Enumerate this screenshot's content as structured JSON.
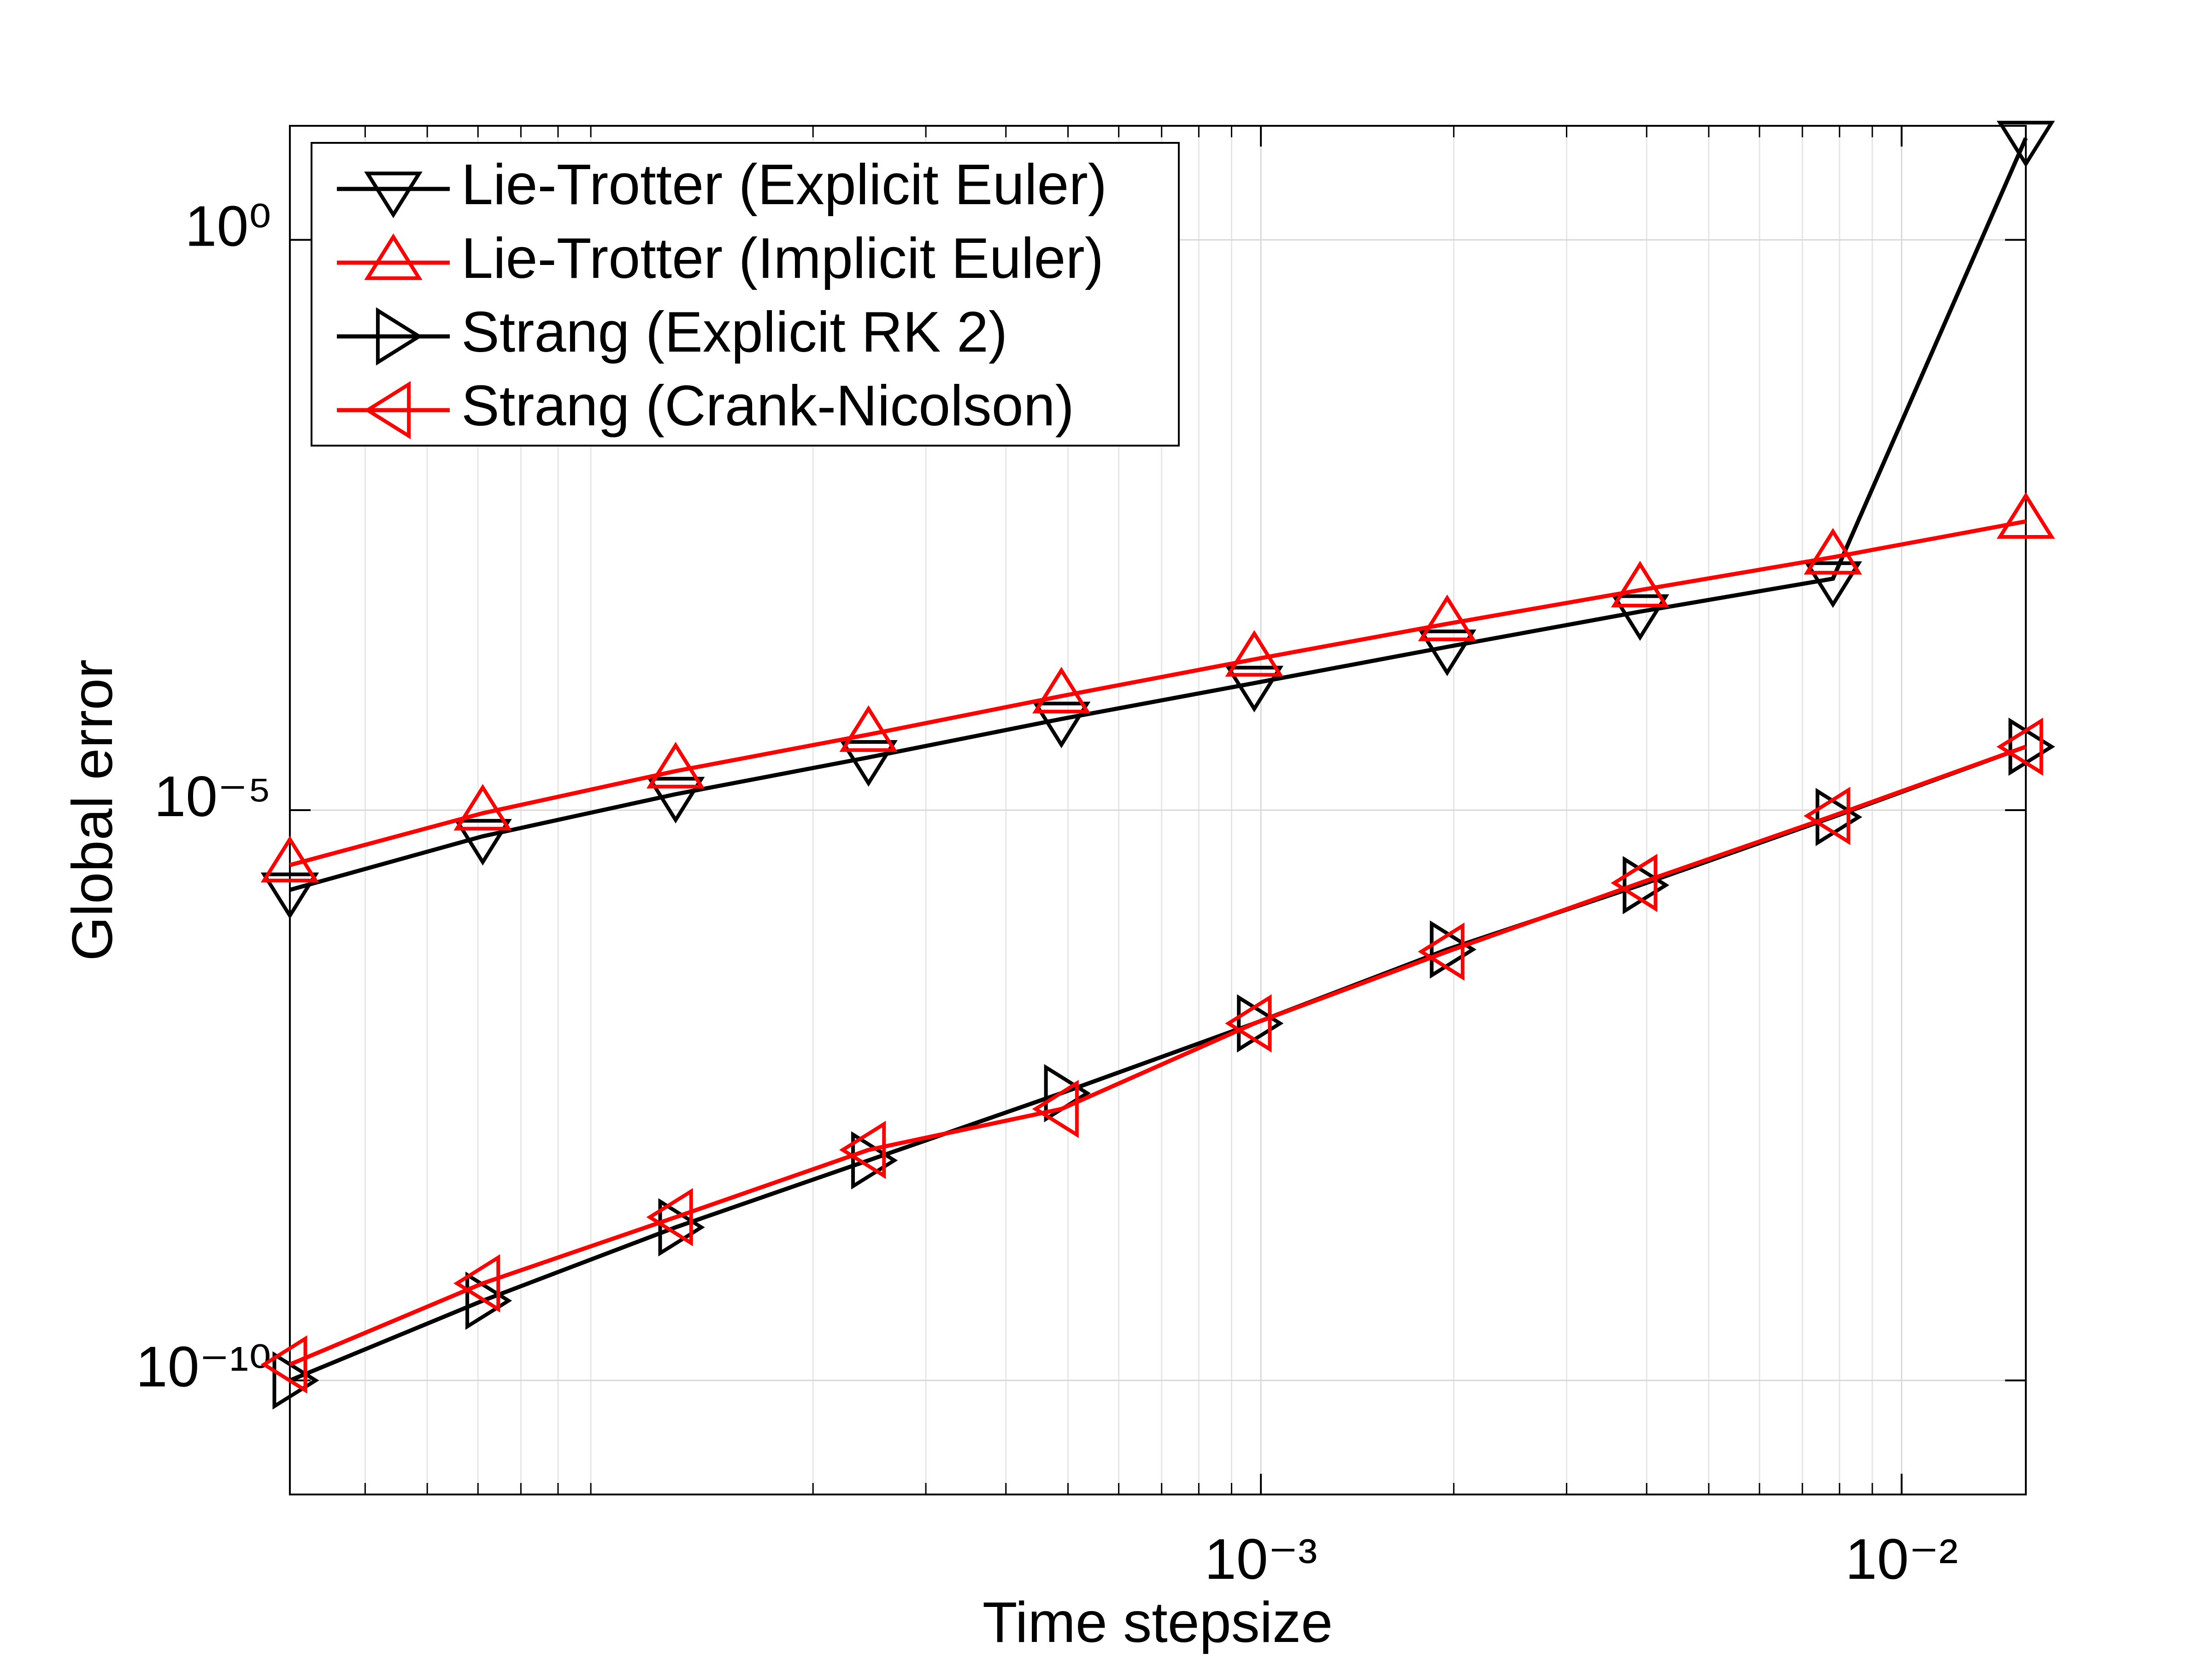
{
  "chart_data": {
    "type": "line",
    "xlabel": "Time stepsize",
    "ylabel": "Global error",
    "xscale": "log",
    "yscale": "log",
    "grid": true,
    "minor_grid_x": true,
    "legend": "upper left",
    "x": [
      3.0517578125e-05,
      6.103515625e-05,
      0.0001220703125,
      0.000244140625,
      0.00048828125,
      0.0009765625,
      0.001953125,
      0.00390625,
      0.0078125,
      0.015625
    ],
    "xlim": [
      3.0517578125e-05,
      0.015625
    ],
    "xticks": [
      {
        "value": 0.001,
        "label": "10⁻³"
      },
      {
        "value": 0.01,
        "label": "10⁻²"
      }
    ],
    "ylim": [
      1e-11,
      10
    ],
    "yticks": [
      {
        "value": 1e-10,
        "label": "10⁻¹⁰"
      },
      {
        "value": 1e-05,
        "label": "10⁻⁵"
      },
      {
        "value": 1,
        "label": "10⁰"
      }
    ],
    "series": [
      {
        "name": "Lie-Trotter (Explicit Euler)",
        "color": "#000000",
        "marker": "down",
        "values": [
          2e-06,
          5.9e-06,
          1.38e-05,
          2.9e-05,
          6.3e-05,
          0.00013,
          0.00027,
          0.00055,
          0.00107,
          7.8
        ]
      },
      {
        "name": "Lie-Trotter (Implicit Euler)",
        "color": "#ff0000",
        "marker": "up",
        "values": [
          3.3e-06,
          9.4e-06,
          2.2e-05,
          4.6e-05,
          0.0001,
          0.00021,
          0.00043,
          0.00085,
          0.00165,
          0.0034
        ]
      },
      {
        "name": "Strang (Explicit RK 2)",
        "color": "#000000",
        "marker": "right",
        "values": [
          1e-10,
          5e-10,
          2.2e-09,
          8.5e-09,
          3.3e-08,
          1.35e-07,
          6e-07,
          2.2e-06,
          8.7e-06,
          3.6e-05
        ]
      },
      {
        "name": "Strang (Crank-Nicolson)",
        "color": "#ff0000",
        "marker": "left",
        "values": [
          1.38e-10,
          7.1e-10,
          2.7e-09,
          1.05e-08,
          2.4e-08,
          1.35e-07,
          5.75e-07,
          2.3e-06,
          8.9e-06,
          3.6e-05
        ]
      }
    ]
  }
}
